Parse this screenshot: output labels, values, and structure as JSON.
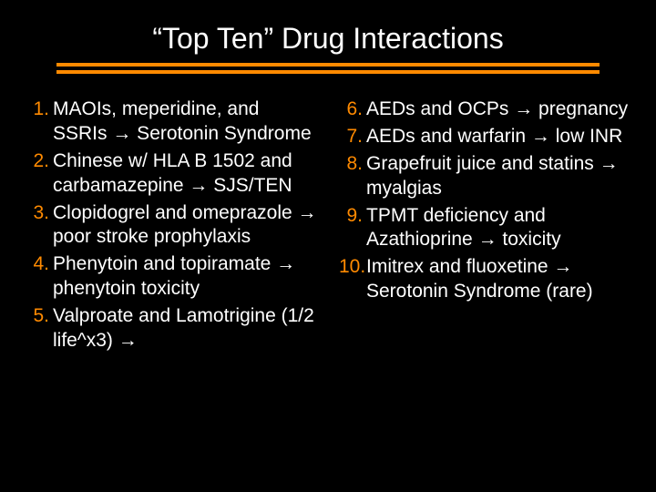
{
  "title": "“Top Ten” Drug Interactions",
  "colors": {
    "background": "#000000",
    "text": "#ffffff",
    "accent": "#ff8a00"
  },
  "typography": {
    "title_fontsize": 32,
    "body_fontsize": 21,
    "font_family": "Arial"
  },
  "left": [
    "MAOIs, meperidine, and SSRIs → Serotonin Syndrome",
    "Chinese w/ HLA B 1502 and carbamazepine → SJS/TEN",
    "Clopidogrel and omeprazole → poor stroke prophylaxis",
    "Phenytoin and topiramate → phenytoin toxicity",
    "Valproate and Lamotrigine (1/2 life^x3) →"
  ],
  "right": [
    "AEDs and OCPs → pregnancy",
    "AEDs and warfarin → low INR",
    "Grapefruit juice and statins → myalgias",
    "TPMT deficiency and Azathioprine → toxicity",
    "Imitrex and fluoxetine → Serotonin Syndrome (rare)"
  ]
}
